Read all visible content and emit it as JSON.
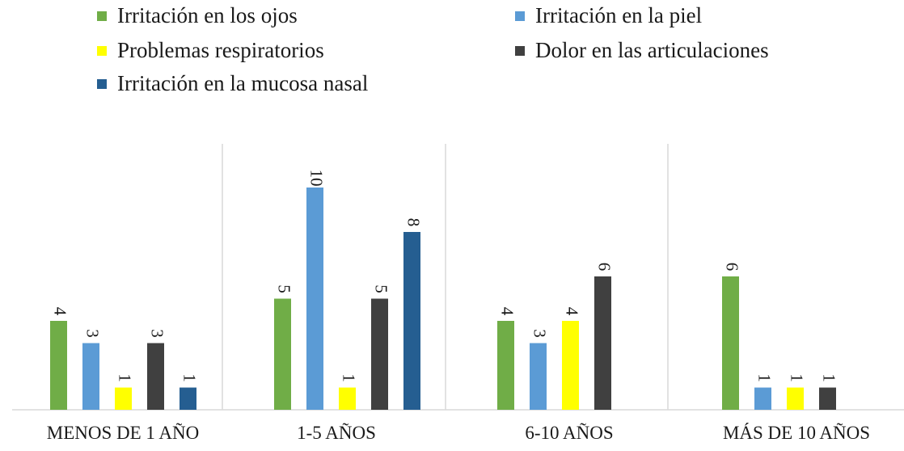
{
  "chart_data": {
    "type": "bar",
    "categories": [
      "MENOS DE 1 AÑO",
      "1-5 AÑOS",
      "6-10 AÑOS",
      "MÁS DE 10 AÑOS"
    ],
    "series": [
      {
        "name": "Irritación en los ojos",
        "color": "#70ad47",
        "values": [
          4,
          5,
          4,
          6
        ]
      },
      {
        "name": "Irritación en la piel",
        "color": "#5b9bd5",
        "values": [
          3,
          10,
          3,
          1
        ]
      },
      {
        "name": "Problemas respiratorios",
        "color": "#ffff00",
        "values": [
          1,
          1,
          4,
          1
        ]
      },
      {
        "name": "Dolor en las articulaciones",
        "color": "#404040",
        "values": [
          3,
          5,
          6,
          1
        ]
      },
      {
        "name": "Irritación en la mucosa nasal",
        "color": "#255e91",
        "values": [
          1,
          8,
          null,
          null
        ]
      }
    ],
    "ylim": [
      0,
      10
    ],
    "legend_position": "top",
    "data_labels": true,
    "data_label_orientation": "vertical",
    "grid": false,
    "category_separators": true
  }
}
